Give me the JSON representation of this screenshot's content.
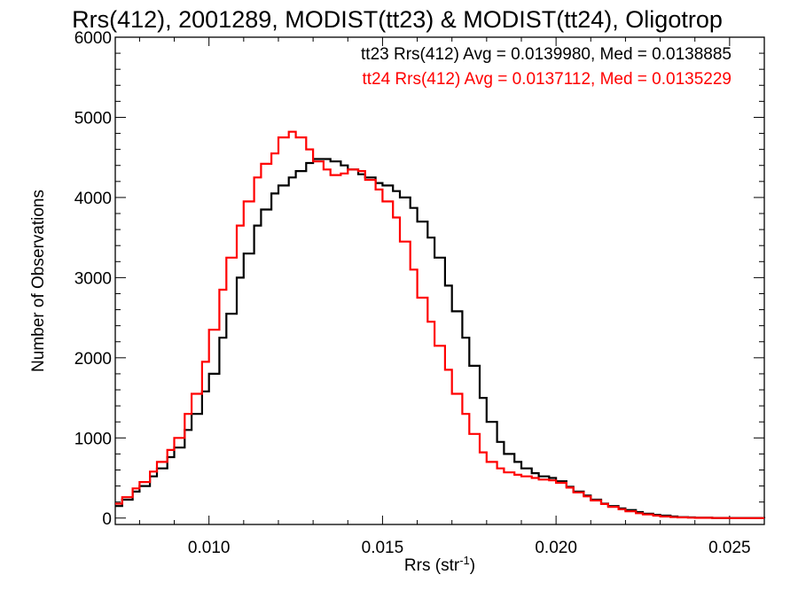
{
  "chart_data": {
    "type": "line",
    "step": true,
    "title": "Rrs(412), 2001289, MODIST(tt23) & MODIST(tt24), Oligotrop",
    "xlabel": "Rrs (str",
    "xlabel_sup": "-1",
    "xlabel_close": ")",
    "ylabel": "Number of Observations",
    "xlim": [
      0.0073,
      0.026
    ],
    "ylim": [
      -80,
      6000
    ],
    "xticks": [
      0.01,
      0.015,
      0.02,
      0.025
    ],
    "xtick_labels": [
      "0.010",
      "0.015",
      "0.020",
      "0.025"
    ],
    "yticks": [
      0,
      1000,
      2000,
      3000,
      4000,
      5000,
      6000
    ],
    "ytick_labels": [
      "0",
      "1000",
      "2000",
      "3000",
      "4000",
      "5000",
      "6000"
    ],
    "grid": false,
    "legend_position": "top-right",
    "legend": [
      {
        "text": "tt23 Rrs(412) Avg = 0.0139980, Med = 0.0138885",
        "color": "#000000"
      },
      {
        "text": "tt24 Rrs(412) Avg = 0.0137112, Med = 0.0135229",
        "color": "#ff0000"
      }
    ],
    "series": [
      {
        "color": "#000000",
        "points": [
          [
            0.0073,
            150
          ],
          [
            0.0075,
            230
          ],
          [
            0.0078,
            330
          ],
          [
            0.008,
            400
          ],
          [
            0.0083,
            520
          ],
          [
            0.0085,
            620
          ],
          [
            0.0088,
            760
          ],
          [
            0.009,
            880
          ],
          [
            0.0093,
            1100
          ],
          [
            0.0095,
            1300
          ],
          [
            0.0098,
            1580
          ],
          [
            0.01,
            1800
          ],
          [
            0.0103,
            2250
          ],
          [
            0.0105,
            2550
          ],
          [
            0.0108,
            3000
          ],
          [
            0.011,
            3300
          ],
          [
            0.0113,
            3650
          ],
          [
            0.0115,
            3850
          ],
          [
            0.0118,
            4050
          ],
          [
            0.012,
            4150
          ],
          [
            0.0123,
            4250
          ],
          [
            0.0125,
            4330
          ],
          [
            0.0128,
            4430
          ],
          [
            0.013,
            4480
          ],
          [
            0.0133,
            4480
          ],
          [
            0.0135,
            4450
          ],
          [
            0.0138,
            4400
          ],
          [
            0.014,
            4350
          ],
          [
            0.0143,
            4290
          ],
          [
            0.0145,
            4250
          ],
          [
            0.0148,
            4180
          ],
          [
            0.015,
            4150
          ],
          [
            0.0153,
            4080
          ],
          [
            0.0155,
            4000
          ],
          [
            0.0158,
            3870
          ],
          [
            0.016,
            3700
          ],
          [
            0.0163,
            3500
          ],
          [
            0.0165,
            3250
          ],
          [
            0.0168,
            2900
          ],
          [
            0.017,
            2580
          ],
          [
            0.0173,
            2250
          ],
          [
            0.0175,
            1900
          ],
          [
            0.0178,
            1500
          ],
          [
            0.018,
            1200
          ],
          [
            0.0183,
            950
          ],
          [
            0.0185,
            800
          ],
          [
            0.0188,
            700
          ],
          [
            0.019,
            620
          ],
          [
            0.0193,
            560
          ],
          [
            0.0195,
            520
          ],
          [
            0.0198,
            500
          ],
          [
            0.02,
            460
          ],
          [
            0.0203,
            390
          ],
          [
            0.0205,
            330
          ],
          [
            0.0208,
            280
          ],
          [
            0.021,
            230
          ],
          [
            0.0213,
            180
          ],
          [
            0.0215,
            150
          ],
          [
            0.0218,
            120
          ],
          [
            0.022,
            100
          ],
          [
            0.0223,
            75
          ],
          [
            0.0225,
            55
          ],
          [
            0.0228,
            40
          ],
          [
            0.023,
            30
          ],
          [
            0.0233,
            20
          ],
          [
            0.0235,
            12
          ],
          [
            0.0238,
            8
          ],
          [
            0.024,
            5
          ],
          [
            0.0245,
            2
          ],
          [
            0.025,
            1
          ],
          [
            0.026,
            0
          ]
        ]
      },
      {
        "color": "#ff0000",
        "points": [
          [
            0.0073,
            180
          ],
          [
            0.0075,
            260
          ],
          [
            0.0078,
            370
          ],
          [
            0.008,
            450
          ],
          [
            0.0083,
            580
          ],
          [
            0.0085,
            700
          ],
          [
            0.0088,
            850
          ],
          [
            0.009,
            1000
          ],
          [
            0.0093,
            1300
          ],
          [
            0.0095,
            1550
          ],
          [
            0.0098,
            1950
          ],
          [
            0.01,
            2350
          ],
          [
            0.0103,
            2850
          ],
          [
            0.0105,
            3250
          ],
          [
            0.0108,
            3650
          ],
          [
            0.011,
            3950
          ],
          [
            0.0113,
            4250
          ],
          [
            0.0115,
            4420
          ],
          [
            0.0118,
            4550
          ],
          [
            0.012,
            4750
          ],
          [
            0.0123,
            4820
          ],
          [
            0.0125,
            4750
          ],
          [
            0.0128,
            4600
          ],
          [
            0.013,
            4450
          ],
          [
            0.0133,
            4350
          ],
          [
            0.0135,
            4280
          ],
          [
            0.0138,
            4300
          ],
          [
            0.014,
            4350
          ],
          [
            0.0143,
            4330
          ],
          [
            0.0145,
            4220
          ],
          [
            0.0148,
            4100
          ],
          [
            0.015,
            3950
          ],
          [
            0.0153,
            3750
          ],
          [
            0.0155,
            3450
          ],
          [
            0.0158,
            3100
          ],
          [
            0.016,
            2750
          ],
          [
            0.0163,
            2450
          ],
          [
            0.0165,
            2150
          ],
          [
            0.0168,
            1850
          ],
          [
            0.017,
            1550
          ],
          [
            0.0173,
            1300
          ],
          [
            0.0175,
            1050
          ],
          [
            0.0178,
            820
          ],
          [
            0.018,
            700
          ],
          [
            0.0183,
            620
          ],
          [
            0.0185,
            570
          ],
          [
            0.0188,
            540
          ],
          [
            0.019,
            520
          ],
          [
            0.0193,
            500
          ],
          [
            0.0195,
            480
          ],
          [
            0.0198,
            470
          ],
          [
            0.02,
            440
          ],
          [
            0.0203,
            380
          ],
          [
            0.0205,
            320
          ],
          [
            0.0208,
            270
          ],
          [
            0.021,
            220
          ],
          [
            0.0213,
            175
          ],
          [
            0.0215,
            140
          ],
          [
            0.0218,
            110
          ],
          [
            0.022,
            85
          ],
          [
            0.0223,
            60
          ],
          [
            0.0225,
            45
          ],
          [
            0.0228,
            30
          ],
          [
            0.023,
            20
          ],
          [
            0.0233,
            12
          ],
          [
            0.0235,
            8
          ],
          [
            0.0238,
            5
          ],
          [
            0.024,
            3
          ],
          [
            0.0245,
            1
          ],
          [
            0.025,
            0
          ],
          [
            0.026,
            0
          ]
        ]
      }
    ]
  }
}
